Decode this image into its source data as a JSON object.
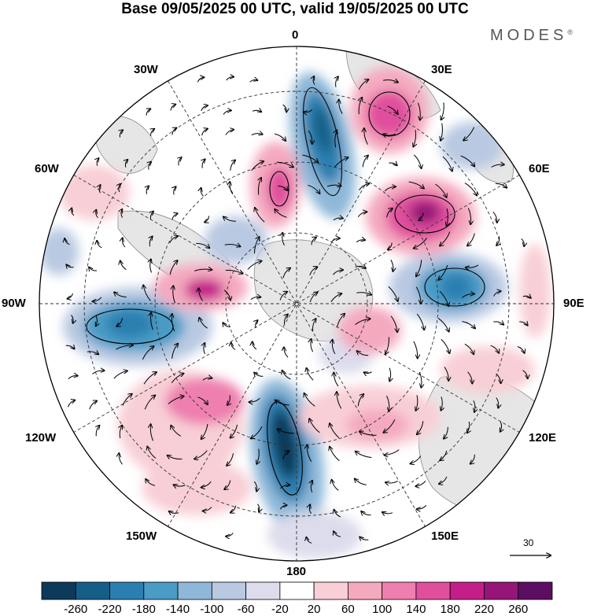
{
  "title": "Base 09/05/2025 00 UTC, valid 19/05/2025 00 UTC",
  "brand": {
    "name": "MODES",
    "mark": "®"
  },
  "lon_labels": {
    "n0": "0",
    "n30e": "30E",
    "n60e": "60E",
    "n90e": "90E",
    "n120e": "120E",
    "n150e": "150E",
    "n180": "180",
    "n150w": "150W",
    "n120w": "120W",
    "n90w": "90W",
    "n60w": "60W",
    "n30w": "30W"
  },
  "reference_vector": {
    "label": "30"
  },
  "colorbar": {
    "ticks": [
      "-260",
      "-220",
      "-180",
      "-140",
      "-100",
      "-60",
      "-20",
      "20",
      "60",
      "100",
      "140",
      "180",
      "220",
      "260"
    ],
    "colors": [
      "#0d3a5a",
      "#155e88",
      "#2a7fb0",
      "#4a9bc6",
      "#8fb8d8",
      "#b9c9e2",
      "#dcdcec",
      "#ffffff",
      "#f8cfd6",
      "#f4a9bf",
      "#ee7fae",
      "#e04f9c",
      "#c41f89",
      "#961678",
      "#5b0e62"
    ]
  }
}
